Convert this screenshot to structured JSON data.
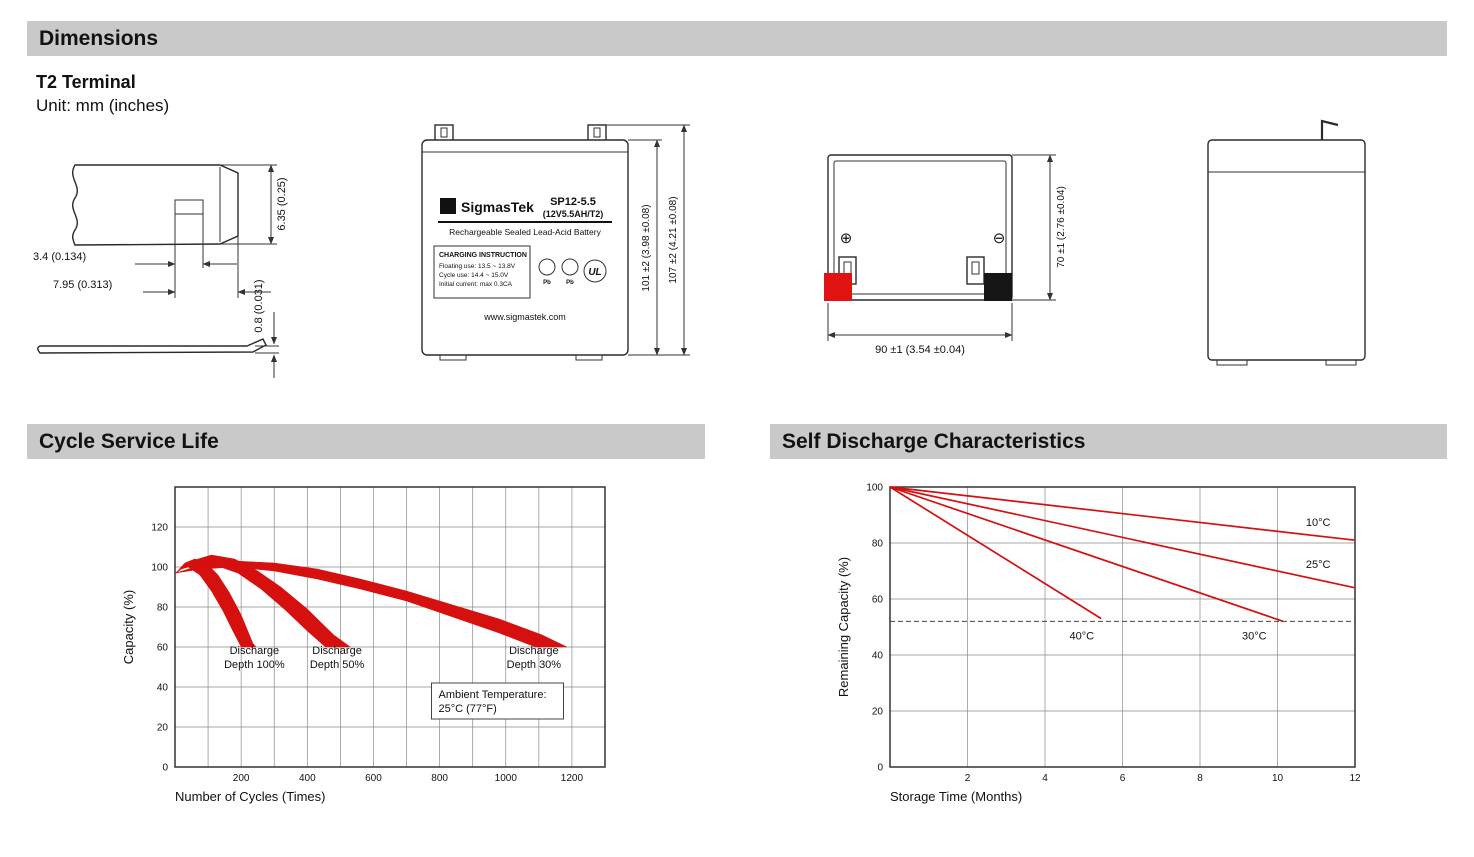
{
  "header": {
    "dimensions_title": "Dimensions",
    "terminal_type": "T2 Terminal",
    "unit_note": "Unit: mm (inches)"
  },
  "sections": {
    "cycle_title": "Cycle Service Life",
    "discharge_title": "Self Discharge Characteristics"
  },
  "colors": {
    "chart_red": "#d60f0f",
    "positive_red": "#e01212",
    "negative_black": "#161616",
    "section_bar_gray": "#c9c9c9"
  },
  "terminal_drawing": {
    "dim_tab_height": "6.35 (0.25)",
    "dim_slot_width": "3.4 (0.134)",
    "dim_tab_width": "7.95 (0.313)",
    "dim_plate_thickness": "0.8 (0.031)"
  },
  "front_view": {
    "logo_glyph": "Σ",
    "brand": "SigmasTek",
    "model": "SP12-5.5",
    "spec": "(12V5.5AH/T2)",
    "subtitle": "Rechargeable Sealed Lead-Acid Battery",
    "charging_title": "CHARGING INSTRUCTION",
    "charging_line1": "Floating use: 13.5 ~ 13.8V",
    "charging_line2": "Cycle use: 14.4 ~ 15.0V",
    "charging_line3": "Initial current: max 0.3CA",
    "pb1": "Pb",
    "pb2": "Pb",
    "ul": "UL",
    "website": "www.sigmastek.com",
    "dim_case_height": "101 ±2 (3.98 ±0.08)",
    "dim_total_height": "107 ±2 (4.21 ±0.08)"
  },
  "rear_view": {
    "positive": "⊕",
    "negative": "⊖",
    "dim_width": "90 ±1 (3.54 ±0.04)",
    "dim_depth": "70 ±1 (2.76 ±0.04)"
  },
  "chart_data": [
    {
      "id": "cycle-life",
      "type": "area",
      "title": "Cycle Service Life",
      "xlabel": "Number of Cycles (Times)",
      "ylabel": "Capacity (%)",
      "xlim": [
        0,
        1300
      ],
      "ylim": [
        0,
        140
      ],
      "xticks": [
        200,
        400,
        600,
        800,
        1000,
        1200
      ],
      "yticks": [
        0,
        20,
        40,
        60,
        80,
        100,
        120
      ],
      "x_grid_step": 100,
      "y_grid_step": 20,
      "grid": true,
      "legend": "none",
      "bands": [
        {
          "name": "Discharge Depth 100%",
          "color": "#d60f0f",
          "points": [
            [
              2,
              97
            ],
            [
              30,
              102
            ],
            [
              60,
              104
            ],
            [
              95,
              102
            ],
            [
              130,
              96
            ],
            [
              165,
              87
            ],
            [
              200,
              76
            ],
            [
              235,
              62
            ],
            [
              245,
              60
            ],
            [
              200,
              60
            ],
            [
              175,
              68
            ],
            [
              145,
              78
            ],
            [
              110,
              88
            ],
            [
              75,
              96
            ],
            [
              40,
              100
            ],
            [
              15,
              99
            ],
            [
              2,
              97
            ]
          ]
        },
        {
          "name": "Discharge Depth 50%",
          "color": "#d60f0f",
          "points": [
            [
              2,
              97
            ],
            [
              50,
              103
            ],
            [
              110,
              106
            ],
            [
              180,
              104
            ],
            [
              250,
              98
            ],
            [
              320,
              90
            ],
            [
              400,
              79
            ],
            [
              480,
              66
            ],
            [
              530,
              60
            ],
            [
              455,
              60
            ],
            [
              400,
              68
            ],
            [
              330,
              79
            ],
            [
              260,
              89
            ],
            [
              190,
              97
            ],
            [
              120,
              101
            ],
            [
              60,
              101
            ],
            [
              20,
              99
            ],
            [
              2,
              97
            ]
          ]
        },
        {
          "name": "Discharge Depth 30%",
          "color": "#d60f0f",
          "points": [
            [
              2,
              97
            ],
            [
              80,
              101
            ],
            [
              180,
              103
            ],
            [
              300,
              102
            ],
            [
              430,
              99
            ],
            [
              560,
              94
            ],
            [
              700,
              88
            ],
            [
              840,
              81
            ],
            [
              980,
              74
            ],
            [
              1110,
              66
            ],
            [
              1185,
              60
            ],
            [
              1090,
              60
            ],
            [
              980,
              67
            ],
            [
              840,
              75
            ],
            [
              700,
              83
            ],
            [
              560,
              89
            ],
            [
              430,
              94
            ],
            [
              300,
              98
            ],
            [
              180,
              100
            ],
            [
              80,
              99
            ],
            [
              2,
              97
            ]
          ]
        }
      ],
      "annotations": [
        {
          "text": "Discharge\nDepth 100%",
          "x": 240,
          "y": 55
        },
        {
          "text": "Discharge\nDepth 50%",
          "x": 490,
          "y": 55
        },
        {
          "text": "Discharge\nDepth 30%",
          "x": 1085,
          "y": 55
        },
        {
          "text": "Ambient Temperature:\n25°C (77°F)",
          "x": 975,
          "y": 33,
          "box": true,
          "align": "left"
        }
      ]
    },
    {
      "id": "self-discharge",
      "type": "line",
      "title": "Self Discharge Characteristics",
      "xlabel": "Storage Time (Months)",
      "ylabel": "Remaining Capacity (%)",
      "xlim": [
        0,
        12
      ],
      "ylim": [
        0,
        100
      ],
      "xticks": [
        2,
        4,
        6,
        8,
        10,
        12
      ],
      "yticks": [
        0,
        20,
        40,
        60,
        80,
        100
      ],
      "x_grid_step": 2,
      "y_grid_step": 20,
      "grid": true,
      "legend": "inline",
      "series": [
        {
          "name": "10°C",
          "color": "#d60f0f",
          "points": [
            [
              0,
              100
            ],
            [
              12,
              81
            ]
          ],
          "label_at": [
            11.05,
            86
          ]
        },
        {
          "name": "25°C",
          "color": "#d60f0f",
          "points": [
            [
              0,
              100
            ],
            [
              12,
              64
            ]
          ],
          "label_at": [
            11.05,
            71
          ]
        },
        {
          "name": "30°C",
          "color": "#d60f0f",
          "points": [
            [
              0,
              100
            ],
            [
              10.15,
              52
            ]
          ],
          "label_at": [
            9.4,
            45.5
          ]
        },
        {
          "name": "40°C",
          "color": "#d60f0f",
          "points": [
            [
              0,
              100
            ],
            [
              5.45,
              53
            ]
          ],
          "label_at": [
            4.95,
            45.5
          ]
        }
      ],
      "dashed_line_y": 52
    }
  ]
}
